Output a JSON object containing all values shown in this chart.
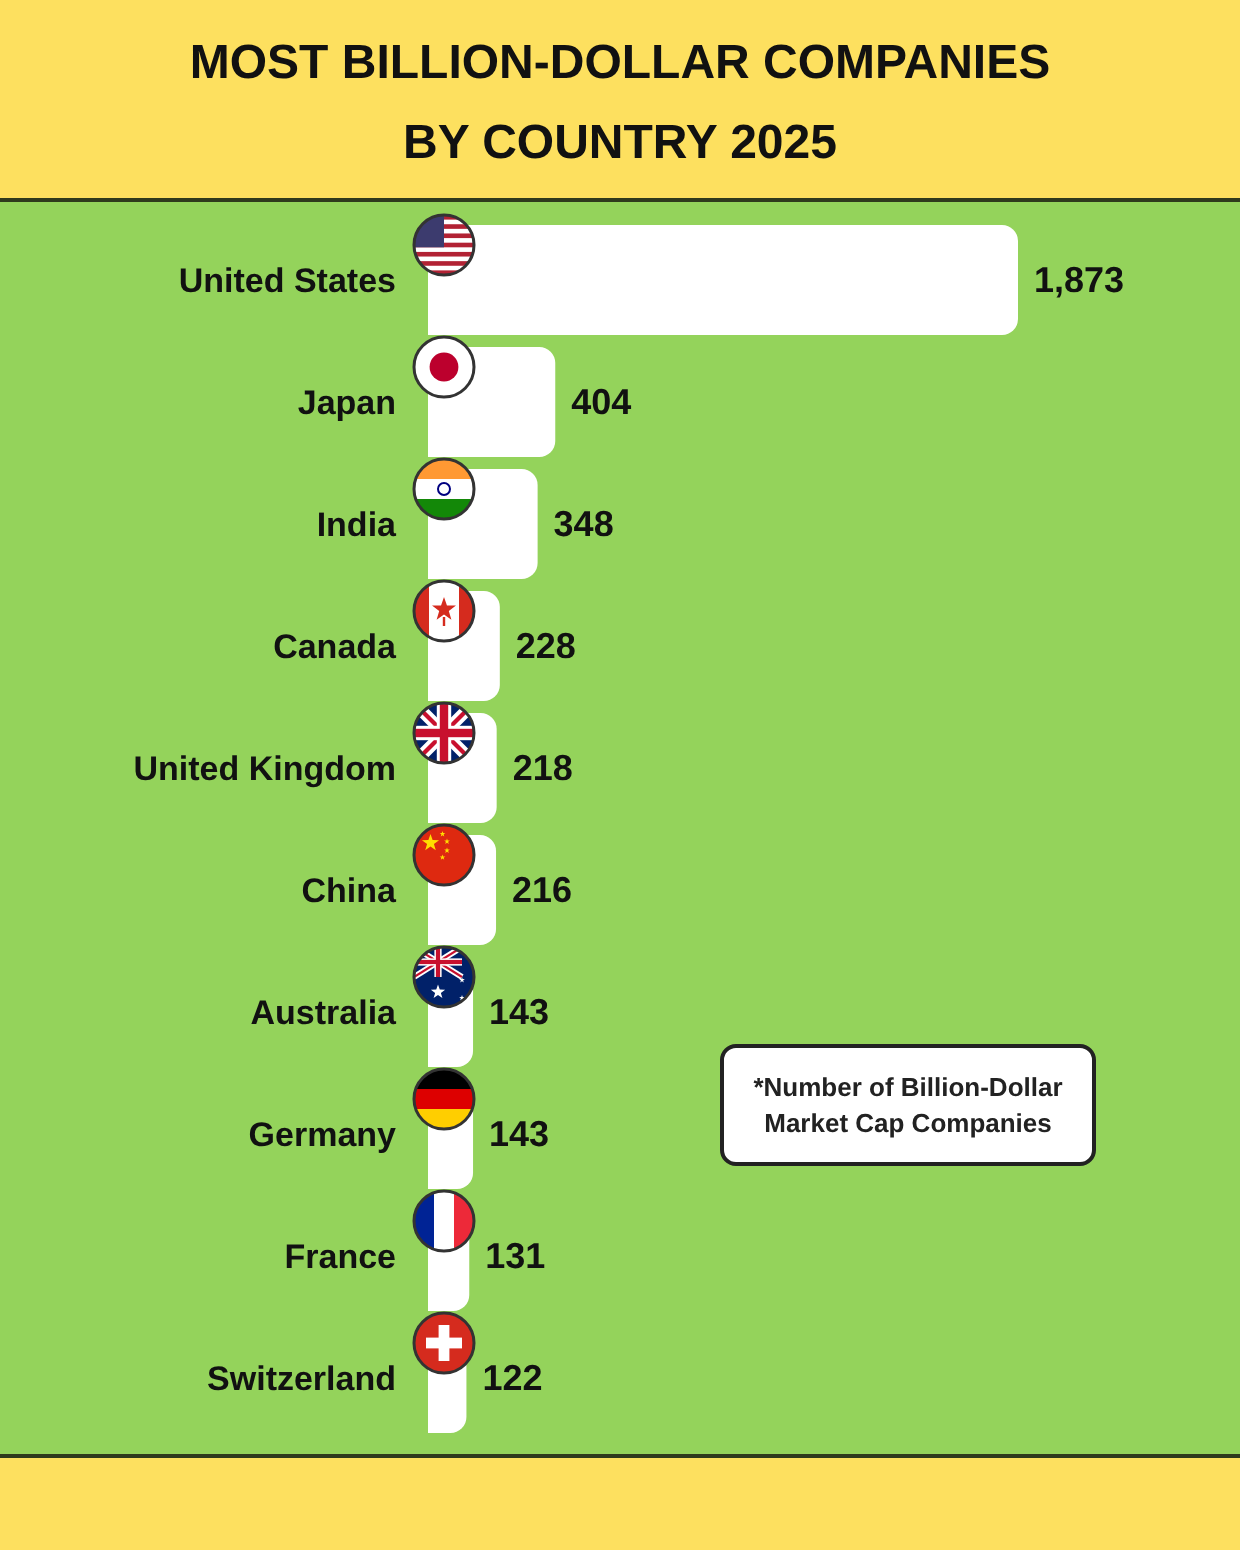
{
  "chart_data": {
    "type": "bar",
    "orientation": "horizontal",
    "title": "MOST BILLION-DOLLAR COMPANIES BY COUNTRY 2025",
    "categories": [
      "United States",
      "Japan",
      "India",
      "Canada",
      "United Kingdom",
      "China",
      "Australia",
      "Germany",
      "France",
      "Switzerland"
    ],
    "values": [
      1873,
      404,
      348,
      228,
      218,
      216,
      143,
      143,
      131,
      122
    ],
    "value_labels": [
      "1,873",
      "404",
      "348",
      "228",
      "218",
      "216",
      "143",
      "143",
      "131",
      "122"
    ],
    "color": "#ffffff",
    "annotations": [
      "*Number of Billion-Dollar Market Cap Companies"
    ]
  }
}
